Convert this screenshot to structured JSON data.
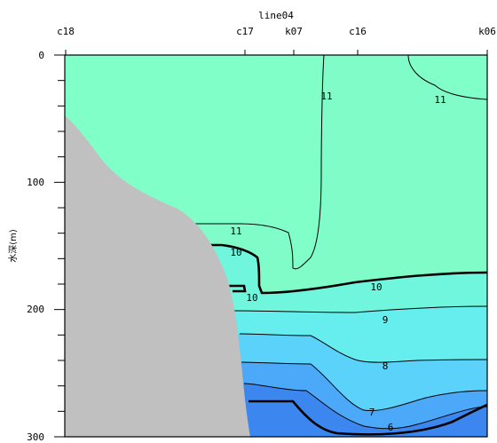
{
  "chart_data": {
    "type": "contour",
    "title": "line04",
    "ylabel": "水深(m)",
    "ylim": [
      0,
      300
    ],
    "y_ticks": [
      0,
      100,
      200,
      300
    ],
    "stations": [
      "c18",
      "c17",
      "k07",
      "c16",
      "k06"
    ],
    "contour_labels": [
      "11",
      "11",
      "11",
      "10",
      "10",
      "10",
      "9",
      "8",
      "7",
      "6"
    ],
    "colors": {
      "band_11_up": "#80ffc8",
      "band_10_11": "#80fcc8",
      "band_9_10": "#70f6dc",
      "band_8_9": "#66eeee",
      "band_7_8": "#5ad2fa",
      "band_6_7": "#4ca8f8",
      "band_below_6": "#3c86f0",
      "seafloor": "#c0c0c0"
    }
  }
}
